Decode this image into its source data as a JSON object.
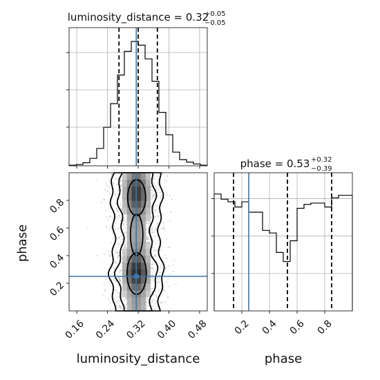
{
  "chart_data": {
    "type": "corner",
    "parameters": [
      "luminosity_distance",
      "phase"
    ],
    "titles": {
      "luminosity_distance": {
        "name": "luminosity_distance",
        "median": "0.32",
        "plus": "+0.05",
        "minus": "−0.05"
      },
      "phase": {
        "name": "phase",
        "median": "0.53",
        "plus": "+0.32",
        "minus": "−0.39"
      }
    },
    "xlabels": [
      "luminosity_distance",
      "phase"
    ],
    "ylabel": "phase",
    "truth": {
      "luminosity_distance": 0.315,
      "phase": 0.25
    },
    "quantiles": {
      "luminosity_distance": [
        0.27,
        0.32,
        0.37
      ],
      "phase": [
        0.14,
        0.53,
        0.85
      ]
    },
    "ranges": {
      "luminosity_distance": [
        0.14,
        0.5
      ],
      "phase": [
        0.0,
        1.0
      ]
    },
    "ticks": {
      "luminosity_distance": [
        "0.16",
        "0.24",
        "0.32",
        "0.40",
        "0.48"
      ],
      "phase": [
        "0.2",
        "0.4",
        "0.6",
        "0.8"
      ]
    },
    "hist_luminosity_distance": {
      "edges": [
        0.14,
        0.158,
        0.176,
        0.194,
        0.212,
        0.23,
        0.248,
        0.266,
        0.284,
        0.302,
        0.32,
        0.338,
        0.356,
        0.374,
        0.392,
        0.41,
        0.428,
        0.446,
        0.464,
        0.482,
        0.5
      ],
      "counts": [
        0.005,
        0.01,
        0.025,
        0.06,
        0.14,
        0.31,
        0.5,
        0.73,
        0.92,
        1.0,
        0.97,
        0.86,
        0.68,
        0.43,
        0.25,
        0.11,
        0.05,
        0.03,
        0.015,
        0.005
      ]
    },
    "hist_phase": {
      "edges": [
        0.0,
        0.05,
        0.1,
        0.15,
        0.2,
        0.25,
        0.3,
        0.35,
        0.4,
        0.45,
        0.5,
        0.55,
        0.6,
        0.65,
        0.7,
        0.75,
        0.8,
        0.85,
        0.9,
        0.95,
        1.0
      ],
      "counts": [
        0.9,
        0.86,
        0.84,
        0.8,
        0.84,
        0.76,
        0.76,
        0.62,
        0.6,
        0.45,
        0.38,
        0.54,
        0.79,
        0.82,
        0.83,
        0.83,
        0.8,
        0.87,
        0.89,
        0.89
      ]
    }
  }
}
